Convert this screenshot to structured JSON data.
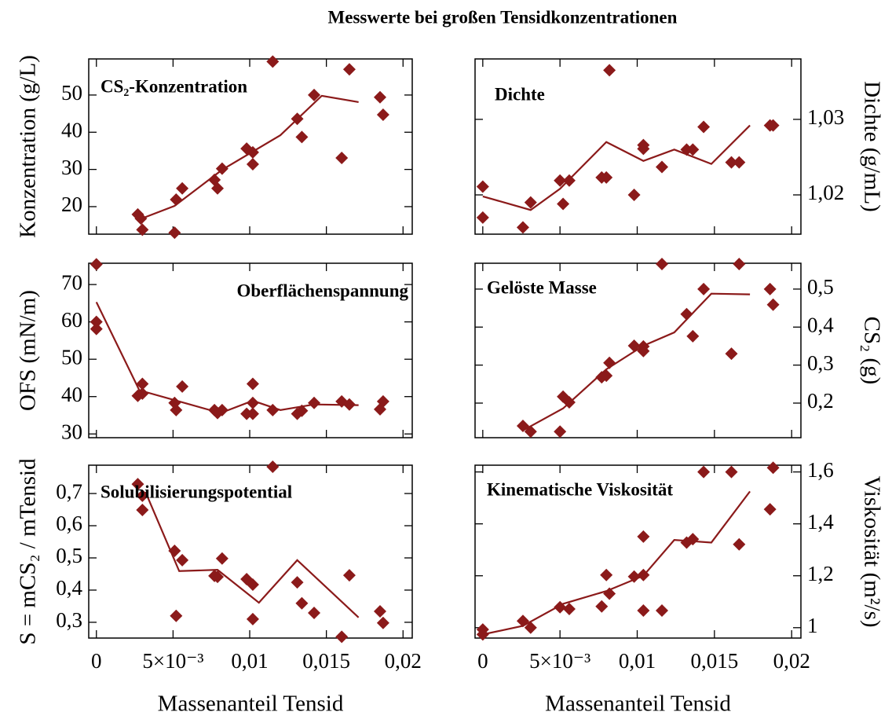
{
  "title": "Messwerte bei großen Tensidkonzentrationen",
  "chart_data": [
    {
      "type": "scatter",
      "annotation": "CS₂-Konzentration",
      "ylabel": "Konzentration (g/L)",
      "yaxis_side": "left",
      "xlim": [
        -0.0005,
        0.0206
      ],
      "xticks": [
        0,
        {
          "value": 0.005,
          "label": "5×10⁻³"
        },
        {
          "value": 0.01,
          "label": "0,01"
        },
        {
          "value": 0.015,
          "label": "0,015"
        },
        {
          "value": 0.02,
          "label": "0,02"
        }
      ],
      "ylim": [
        12.6,
        59.7
      ],
      "yticks": [
        20,
        30,
        40,
        50
      ],
      "series": [
        {
          "mode": "markers",
          "color": "#8b1a1a",
          "x": [
            0.0027,
            0.0029,
            0.003,
            0.0051,
            0.0052,
            0.0056,
            0.0077,
            0.0079,
            0.0082,
            0.0098,
            0.0102,
            0.0102,
            0.0115,
            0.0131,
            0.0134,
            0.0142,
            0.016,
            0.0165,
            0.0185,
            0.0187
          ],
          "values": [
            17.9,
            16.8,
            13.8,
            13.0,
            21.9,
            24.9,
            27.2,
            24.9,
            30.2,
            35.6,
            34.6,
            31.4,
            59.0,
            43.6,
            38.7,
            50.0,
            33.1,
            56.9,
            49.4,
            44.7
          ]
        },
        {
          "mode": "line",
          "color": "#8b1a1a",
          "x": [
            0.0027,
            0.0051,
            0.0082,
            0.012,
            0.0147,
            0.0171
          ],
          "values": [
            16.4,
            20.2,
            29.9,
            39.2,
            49.8,
            48.1
          ]
        }
      ]
    },
    {
      "type": "scatter",
      "annotation": "Dichte",
      "ylabel": "Dichte (g/mL)",
      "yaxis_side": "right",
      "xlim": [
        -0.0005,
        0.0206
      ],
      "xticks": [
        0,
        {
          "value": 0.005,
          "label": "5×10⁻³"
        },
        {
          "value": 0.01,
          "label": "0,01"
        },
        {
          "value": 0.015,
          "label": "0,015"
        },
        {
          "value": 0.02,
          "label": "0,02"
        }
      ],
      "ylim": [
        1.0148,
        1.038
      ],
      "yticks": [
        {
          "value": 1.02,
          "label": "1,02"
        },
        {
          "value": 1.03,
          "label": "1,03"
        }
      ],
      "series": [
        {
          "mode": "markers",
          "color": "#8b1a1a",
          "x": [
            0,
            0,
            0.0026,
            0.0031,
            0.005,
            0.0052,
            0.0056,
            0.0077,
            0.008,
            0.0082,
            0.0098,
            0.0104,
            0.0104,
            0.0116,
            0.0132,
            0.0136,
            0.0143,
            0.0161,
            0.0166,
            0.0186,
            0.0188
          ],
          "values": [
            1.0211,
            1.017,
            1.0157,
            1.019,
            1.0219,
            1.0188,
            1.0219,
            1.0223,
            1.0223,
            1.0365,
            1.02,
            1.0266,
            1.0261,
            1.0237,
            1.026,
            1.026,
            1.029,
            1.0243,
            1.0243,
            1.0292,
            1.0292
          ]
        },
        {
          "mode": "line",
          "color": "#8b1a1a",
          "x": [
            0,
            0.0031,
            0.005,
            0.008,
            0.0104,
            0.0124,
            0.0148,
            0.0173
          ],
          "values": [
            1.0198,
            1.018,
            1.0208,
            1.027,
            1.0245,
            1.026,
            1.0241,
            1.0292
          ]
        }
      ]
    },
    {
      "type": "scatter",
      "annotation": "Oberflächenspannung",
      "ylabel": "OFS (mN/m)",
      "yaxis_side": "left",
      "xlim": [
        -0.0005,
        0.0206
      ],
      "xticks": [
        0,
        {
          "value": 0.005,
          "label": "5×10⁻³"
        },
        {
          "value": 0.01,
          "label": "0,01"
        },
        {
          "value": 0.015,
          "label": "0,015"
        },
        {
          "value": 0.02,
          "label": "0,02"
        }
      ],
      "ylim": [
        29,
        75.7
      ],
      "yticks": [
        30,
        40,
        50,
        60,
        70
      ],
      "series": [
        {
          "mode": "markers",
          "color": "#8b1a1a",
          "x": [
            0,
            0,
            0,
            0.0027,
            0.003,
            0.003,
            0.0051,
            0.0052,
            0.0056,
            0.0077,
            0.0079,
            0.0082,
            0.0098,
            0.0102,
            0.0102,
            0.0102,
            0.0115,
            0.0131,
            0.0134,
            0.0142,
            0.016,
            0.0165,
            0.0185,
            0.0187
          ],
          "values": [
            75.4,
            60,
            58.1,
            40.2,
            43.4,
            40.8,
            38.3,
            36.4,
            42.7,
            36.4,
            35.6,
            36.4,
            35.4,
            38.3,
            43.4,
            35.4,
            36.4,
            35.4,
            36.2,
            38.3,
            38.7,
            37.9,
            36.6,
            38.7
          ]
        },
        {
          "mode": "line",
          "color": "#8b1a1a",
          "x": [
            0,
            0.0028,
            0.0081,
            0.0102,
            0.012,
            0.0142,
            0.0171
          ],
          "values": [
            65.3,
            41.7,
            35.6,
            38.9,
            36.4,
            37.9,
            37.7
          ]
        }
      ]
    },
    {
      "type": "scatter",
      "annotation": "Gelöste Masse",
      "ylabel": "CS₂ (g)",
      "yaxis_side": "right",
      "xlim": [
        -0.0005,
        0.0206
      ],
      "xticks": [
        0,
        {
          "value": 0.005,
          "label": "5×10⁻³"
        },
        {
          "value": 0.01,
          "label": "0,01"
        },
        {
          "value": 0.015,
          "label": "0,015"
        },
        {
          "value": 0.02,
          "label": "0,02"
        }
      ],
      "ylim": [
        0.109,
        0.568
      ],
      "yticks": [
        {
          "value": 0.2,
          "label": "0,2"
        },
        {
          "value": 0.3,
          "label": "0,3"
        },
        {
          "value": 0.4,
          "label": "0,4"
        },
        {
          "value": 0.5,
          "label": "0,5"
        }
      ],
      "series": [
        {
          "mode": "markers",
          "color": "#8b1a1a",
          "x": [
            0.0026,
            0.0031,
            0.005,
            0.0052,
            0.0056,
            0.0077,
            0.008,
            0.0082,
            0.0098,
            0.0104,
            0.0104,
            0.0116,
            0.0132,
            0.0136,
            0.0143,
            0.0161,
            0.0166,
            0.0186,
            0.0188
          ],
          "values": [
            0.14,
            0.125,
            0.125,
            0.217,
            0.202,
            0.268,
            0.272,
            0.306,
            0.351,
            0.349,
            0.337,
            0.566,
            0.434,
            0.376,
            0.5,
            0.33,
            0.566,
            0.5,
            0.459
          ]
        },
        {
          "mode": "line",
          "color": "#8b1a1a",
          "x": [
            0.0026,
            0.0052,
            0.008,
            0.0104,
            0.0124,
            0.0148,
            0.0173
          ],
          "values": [
            0.128,
            0.186,
            0.289,
            0.351,
            0.386,
            0.488,
            0.486
          ]
        }
      ]
    },
    {
      "type": "scatter",
      "annotation": "Solubilisierungspotential",
      "ylabel": "S = mCS₂ / mTensid",
      "yaxis_side": "left",
      "xlabel": "Massenanteil Tensid",
      "xlim": [
        -0.0005,
        0.0206
      ],
      "xticks": [
        0,
        {
          "value": 0.005,
          "label": "5×10⁻³"
        },
        {
          "value": 0.01,
          "label": "0,01"
        },
        {
          "value": 0.015,
          "label": "0,015"
        },
        {
          "value": 0.02,
          "label": "0,02"
        }
      ],
      "ylim": [
        0.251,
        0.788
      ],
      "yticks": [
        {
          "value": 0.3,
          "label": "0,3"
        },
        {
          "value": 0.4,
          "label": "0,4"
        },
        {
          "value": 0.5,
          "label": "0,5"
        },
        {
          "value": 0.6,
          "label": "0,6"
        },
        {
          "value": 0.7,
          "label": "0,7"
        }
      ],
      "series": [
        {
          "mode": "markers",
          "color": "#8b1a1a",
          "x": [
            0.0027,
            0.003,
            0.003,
            0.0051,
            0.0052,
            0.0056,
            0.0077,
            0.0079,
            0.0082,
            0.0098,
            0.0102,
            0.0102,
            0.0115,
            0.0131,
            0.0134,
            0.0142,
            0.016,
            0.0165,
            0.0185,
            0.0187
          ],
          "values": [
            0.729,
            0.693,
            0.649,
            0.522,
            0.32,
            0.493,
            0.444,
            0.441,
            0.498,
            0.434,
            0.417,
            0.31,
            0.783,
            0.424,
            0.359,
            0.329,
            0.255,
            0.446,
            0.334,
            0.298
          ]
        },
        {
          "mode": "line",
          "color": "#8b1a1a",
          "x": [
            0.0032,
            0.0054,
            0.0079,
            0.0106,
            0.0131,
            0.0171
          ],
          "values": [
            0.705,
            0.459,
            0.463,
            0.361,
            0.493,
            0.315
          ]
        }
      ]
    },
    {
      "type": "scatter",
      "annotation": "Kinematische Viskosität",
      "ylabel": "Viskosität (m²/s)",
      "yaxis_side": "right",
      "xlabel": "Massenanteil Tensid",
      "xlim": [
        -0.0005,
        0.0206
      ],
      "xticks": [
        0,
        {
          "value": 0.005,
          "label": "5×10⁻³"
        },
        {
          "value": 0.01,
          "label": "0,01"
        },
        {
          "value": 0.015,
          "label": "0,015"
        },
        {
          "value": 0.02,
          "label": "0,02"
        }
      ],
      "ylim": [
        0.96,
        1.626
      ],
      "yticks": [
        1,
        {
          "value": 1.2,
          "label": "1,2"
        },
        {
          "value": 1.4,
          "label": "1,4"
        },
        {
          "value": 1.6,
          "label": "1,6"
        }
      ],
      "series": [
        {
          "mode": "markers",
          "color": "#8b1a1a",
          "x": [
            0,
            0,
            0.0026,
            0.0031,
            0.005,
            0.0056,
            0.0077,
            0.008,
            0.0082,
            0.0098,
            0.0104,
            0.0104,
            0.0104,
            0.0116,
            0.0132,
            0.0136,
            0.0143,
            0.0161,
            0.0166,
            0.0186,
            0.0188
          ],
          "values": [
            0.993,
            0.974,
            1.026,
            1.0,
            1.079,
            1.072,
            1.082,
            1.203,
            1.131,
            1.197,
            1.203,
            1.066,
            1.351,
            1.066,
            1.328,
            1.341,
            1.6,
            1.6,
            1.321,
            1.456,
            1.616
          ]
        },
        {
          "mode": "line",
          "color": "#8b1a1a",
          "x": [
            0,
            0.0026,
            0.0052,
            0.008,
            0.0104,
            0.0124,
            0.0148,
            0.0173
          ],
          "values": [
            0.974,
            1.007,
            1.092,
            1.141,
            1.2,
            1.338,
            1.328,
            1.525
          ]
        }
      ]
    }
  ]
}
